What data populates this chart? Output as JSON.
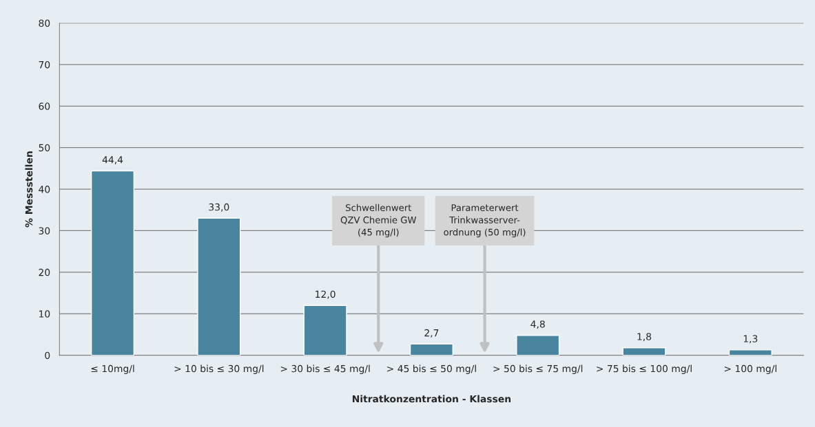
{
  "chart_data": {
    "type": "bar",
    "xlabel": "Nitratkonzentration - Klassen",
    "ylabel": "% Messstellen",
    "categories": [
      "≤ 10mg/l",
      "> 10 bis ≤ 30 mg/l",
      "> 30 bis ≤ 45 mg/l",
      "> 45 bis ≤ 50 mg/l",
      "> 50 bis ≤ 75 mg/l",
      "> 75 bis ≤ 100 mg/l",
      "> 100 mg/l"
    ],
    "values": [
      44.4,
      33.0,
      12.0,
      2.7,
      4.8,
      1.8,
      1.3
    ],
    "value_labels": [
      "44,4",
      "33,0",
      "12,0",
      "2,7",
      "4,8",
      "1,8",
      "1,3"
    ],
    "color": "#4a85a0",
    "ylim": [
      0,
      80
    ],
    "yticks": [
      0,
      10,
      20,
      30,
      40,
      50,
      60,
      70,
      80
    ],
    "grid": "y",
    "annotations": [
      "Schwellenwert\nQZV Chemie GW\n(45 mg/l)",
      "Parameterwert\nTrinkwasserver-\nordnung (50 mg/l)"
    ]
  }
}
